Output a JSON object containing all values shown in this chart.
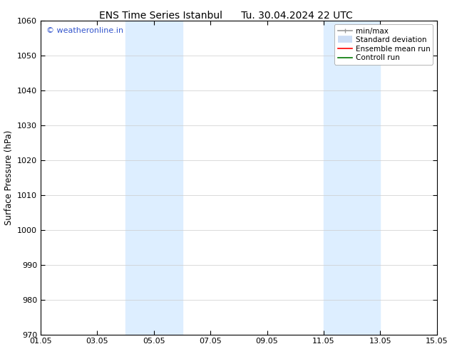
{
  "title_left": "ENS Time Series Istanbul",
  "title_right": "Tu. 30.04.2024 22 UTC",
  "ylabel": "Surface Pressure (hPa)",
  "xlabel": "",
  "ylim": [
    970,
    1060
  ],
  "yticks": [
    970,
    980,
    990,
    1000,
    1010,
    1020,
    1030,
    1040,
    1050,
    1060
  ],
  "xtick_labels": [
    "01.05",
    "03.05",
    "05.05",
    "07.05",
    "09.05",
    "11.05",
    "13.05",
    "15.05"
  ],
  "xtick_positions": [
    0,
    2,
    4,
    6,
    8,
    10,
    12,
    14
  ],
  "xlim": [
    0,
    14
  ],
  "bg_color": "#ffffff",
  "plot_bg_color": "#ffffff",
  "shaded_bands": [
    {
      "x_start": 3.0,
      "x_end": 5.0,
      "color": "#ddeeff"
    },
    {
      "x_start": 10.0,
      "x_end": 12.0,
      "color": "#ddeeff"
    }
  ],
  "watermark_text": "© weatheronline.in",
  "watermark_color": "#3355cc",
  "legend_items": [
    {
      "label": "min/max",
      "color": "#999999",
      "lw": 1.2,
      "style": "line_with_caps"
    },
    {
      "label": "Standard deviation",
      "color": "#ccddf5",
      "lw": 7,
      "style": "thick"
    },
    {
      "label": "Ensemble mean run",
      "color": "#ff0000",
      "lw": 1.2,
      "style": "line"
    },
    {
      "label": "Controll run",
      "color": "#007700",
      "lw": 1.2,
      "style": "line"
    }
  ],
  "title_fontsize": 10,
  "tick_fontsize": 8,
  "ylabel_fontsize": 8.5,
  "watermark_fontsize": 8,
  "legend_fontsize": 7.5,
  "grid_color": "#cccccc",
  "grid_lw": 0.5
}
